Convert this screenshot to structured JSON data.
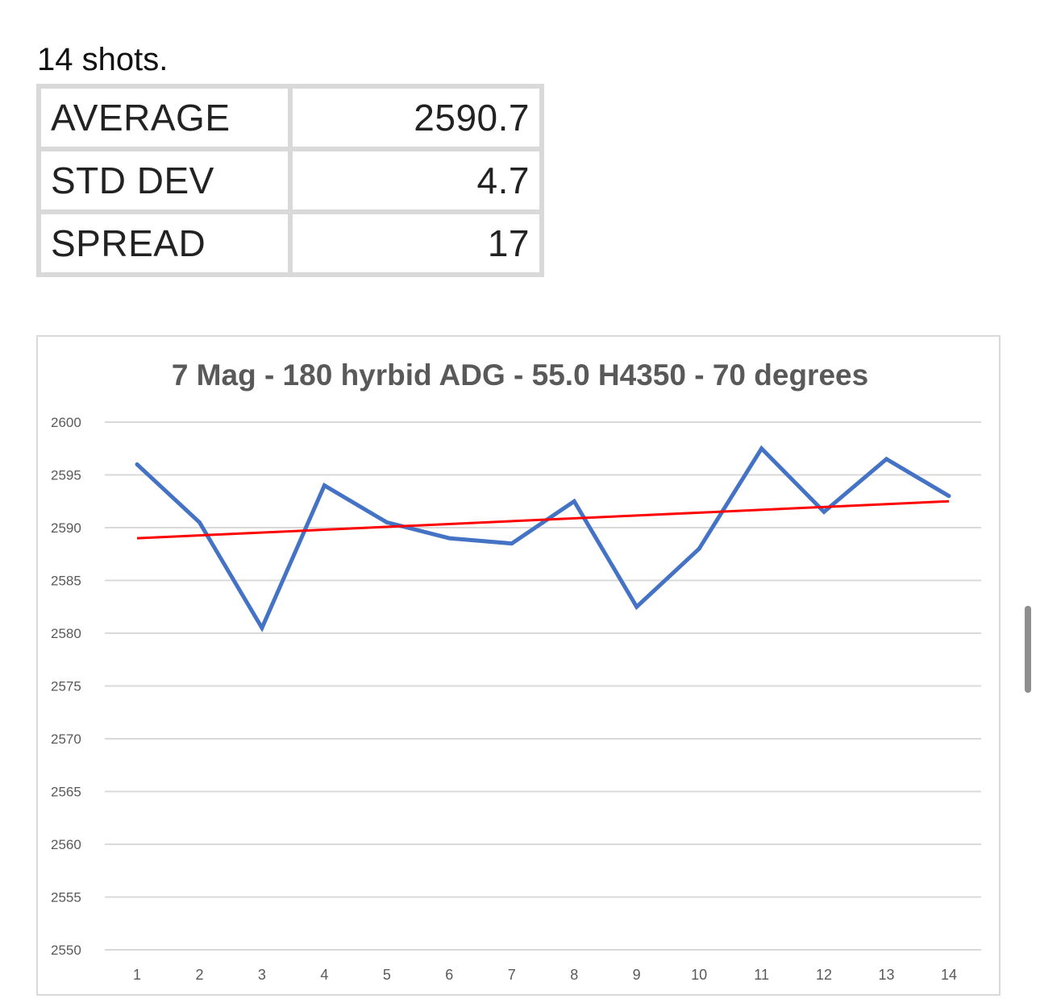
{
  "intro_text": "14 shots.",
  "stats_table": [
    {
      "label": "AVERAGE",
      "value": "2590.7"
    },
    {
      "label": "STD DEV",
      "value": "4.7"
    },
    {
      "label": "SPREAD",
      "value": "17"
    }
  ],
  "colors": {
    "series_line": "#4472c4",
    "trend_line": "#ff0000",
    "grid": "#d9d9d9",
    "axis_text": "#595959",
    "title_text": "#595959"
  },
  "chart_data": {
    "type": "line",
    "title": "7 Mag - 180 hyrbid ADG - 55.0 H4350 - 70 degrees",
    "xlabel": "",
    "ylabel": "",
    "categories": [
      "1",
      "2",
      "3",
      "4",
      "5",
      "6",
      "7",
      "8",
      "9",
      "10",
      "11",
      "12",
      "13",
      "14"
    ],
    "series": [
      {
        "values": [
          2596,
          2590.5,
          2580.5,
          2594,
          2590.5,
          2589,
          2588.5,
          2592.5,
          2582.5,
          2588,
          2597.5,
          2591.5,
          2596.5,
          2593
        ]
      }
    ],
    "trendline": {
      "type": "linear",
      "start": 2589,
      "end": 2592.5
    },
    "ylim": [
      2550,
      2600
    ],
    "yticks": [
      "2550",
      "2555",
      "2560",
      "2565",
      "2570",
      "2575",
      "2580",
      "2585",
      "2590",
      "2595",
      "2600"
    ],
    "grid": true,
    "legend": "none"
  }
}
